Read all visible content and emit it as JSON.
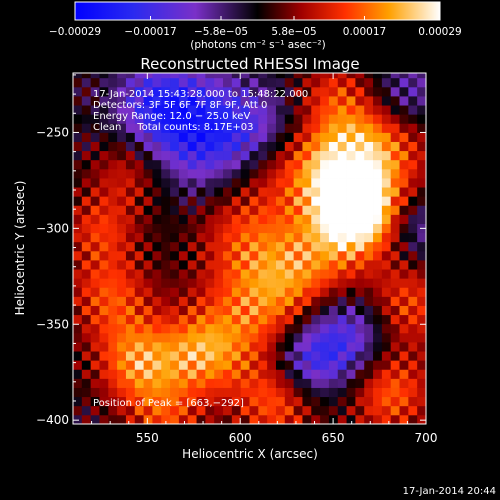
{
  "chart_data": {
    "type": "heatmap",
    "title": "Reconstructed RHESSI Image",
    "xlabel": "Heliocentric X (arcsec)",
    "ylabel": "Heliocentric Y (arcsec)",
    "xlim": [
      510,
      700
    ],
    "ylim": [
      -402,
      -219
    ],
    "x_ticks": [
      550,
      600,
      650,
      700
    ],
    "y_ticks": [
      -250,
      -300,
      -350,
      -400
    ],
    "x_tick_labels": [
      "550",
      "600",
      "650",
      "700"
    ],
    "y_tick_labels": [
      "−250",
      "−300",
      "−350",
      "−400"
    ],
    "colorbar": {
      "range": [
        -0.00029,
        0.00029
      ],
      "tick_values": [
        -0.00029,
        -0.00017,
        -5.8e-05,
        5.8e-05,
        0.00017,
        0.00029
      ],
      "tick_labels": [
        "−0.00029",
        "−0.00017",
        "−5.8e−05",
        "5.8e−05",
        "0.00017",
        "0.00029"
      ],
      "unit_label": "(photons cm⁻² s⁻¹ asec⁻²)"
    },
    "annotations": {
      "time_range": "17-Jan-2014 15:43:28.000 to 15:48:22.000",
      "detectors": "Detectors: 3F 5F 6F 7F 8F 9F, Att 0",
      "energy_range": "Energy Range: 12.0 − 25.0 keV",
      "method_counts": "Clean     Total counts: 8.17E+03",
      "peak_position": "Position of Peak = [663,−292]"
    },
    "peak": {
      "x": 663,
      "y": -292
    },
    "grid": false,
    "timestamp": "17-Jan-2014 20:44",
    "blobs": [
      {
        "x": 663,
        "y": -292,
        "amp": 0.00029,
        "s": 14
      },
      {
        "x": 650,
        "y": -270,
        "amp": 0.0002,
        "s": 18
      },
      {
        "x": 675,
        "y": -258,
        "amp": 0.00017,
        "s": 20
      },
      {
        "x": 640,
        "y": -320,
        "amp": 0.00016,
        "s": 22
      },
      {
        "x": 610,
        "y": -340,
        "amp": 0.00015,
        "s": 22
      },
      {
        "x": 580,
        "y": -365,
        "amp": 0.00018,
        "s": 16
      },
      {
        "x": 545,
        "y": -370,
        "amp": 0.00019,
        "s": 16
      },
      {
        "x": 530,
        "y": -335,
        "amp": 0.00014,
        "s": 16
      },
      {
        "x": 525,
        "y": -300,
        "amp": 0.00012,
        "s": 14
      },
      {
        "x": 540,
        "y": -270,
        "amp": 0.0001,
        "s": 14
      },
      {
        "x": 620,
        "y": -390,
        "amp": 0.00016,
        "s": 16
      },
      {
        "x": 680,
        "y": -385,
        "amp": 0.00017,
        "s": 16
      },
      {
        "x": 690,
        "y": -340,
        "amp": 0.00014,
        "s": 16
      },
      {
        "x": 600,
        "y": -300,
        "amp": 0.0001,
        "s": 18
      },
      {
        "x": 615,
        "y": -265,
        "amp": 9e-05,
        "s": 16
      },
      {
        "x": 650,
        "y": -230,
        "amp": 0.0001,
        "s": 14
      },
      {
        "x": 560,
        "y": -400,
        "amp": 0.00012,
        "s": 14
      },
      {
        "x": 580,
        "y": -250,
        "amp": -0.0002,
        "s": 20
      },
      {
        "x": 555,
        "y": -235,
        "amp": -0.00016,
        "s": 16
      },
      {
        "x": 610,
        "y": -250,
        "amp": -0.00012,
        "s": 16
      },
      {
        "x": 655,
        "y": -355,
        "amp": -0.0002,
        "s": 18
      },
      {
        "x": 635,
        "y": -370,
        "amp": -0.00014,
        "s": 14
      },
      {
        "x": 690,
        "y": -230,
        "amp": -0.00012,
        "s": 14
      },
      {
        "x": 700,
        "y": -300,
        "amp": -0.0001,
        "s": 12
      }
    ]
  }
}
